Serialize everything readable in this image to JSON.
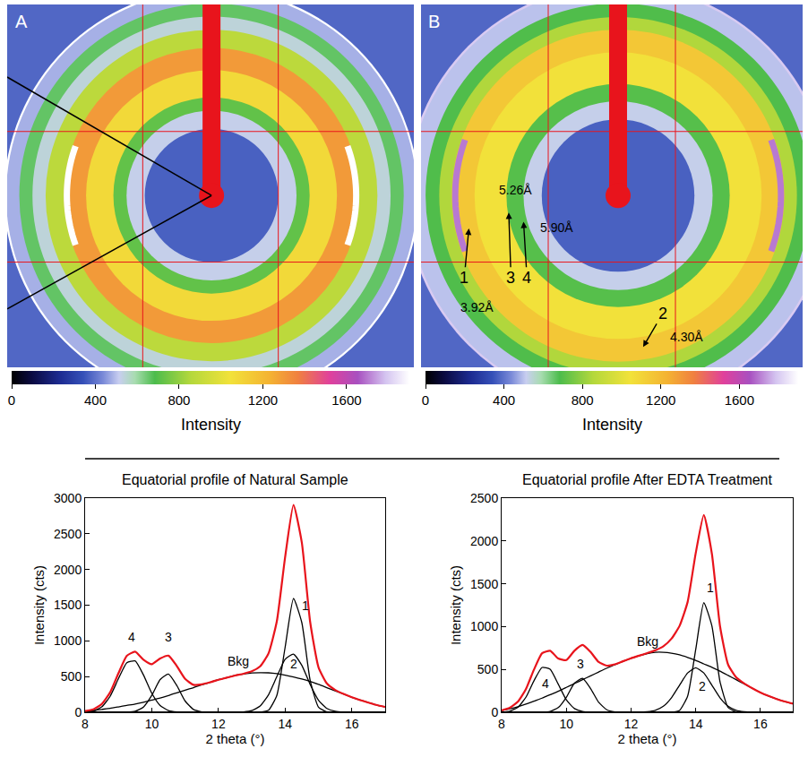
{
  "chart_data": [
    {
      "type": "image",
      "label": "A",
      "xlim": [
        -20.2,
        20
      ],
      "ylim": [
        -17,
        18.9
      ],
      "tick_labels": false,
      "background": 380,
      "bands": [
        {
          "two_theta": 20.5,
          "intensity": 1900
        },
        {
          "two_theta": 20.3,
          "intensity": 480
        },
        {
          "two_theta": 19.0,
          "intensity": 660
        },
        {
          "two_theta": 17.7,
          "intensity": 540
        },
        {
          "two_theta": 16.4,
          "intensity": 880
        },
        {
          "two_theta": 14.6,
          "intensity": 1300
        },
        {
          "two_theta": 12.4,
          "intensity": 1080
        },
        {
          "two_theta": 9.7,
          "intensity": 720
        },
        {
          "two_theta": 8.4,
          "intensity": 520
        },
        {
          "two_theta": 6.6,
          "intensity": 370
        }
      ],
      "arcs": [
        {
          "two_theta": 14.3,
          "intensity": 1900
        }
      ],
      "colorbar": {
        "title": "Intensity",
        "range": [
          0,
          1900
        ],
        "ticks": [
          0,
          400,
          800,
          1200,
          1600
        ]
      }
    },
    {
      "type": "image",
      "label": "B",
      "xlim": [
        -17.3,
        16.2
      ],
      "ylim": [
        -15.1,
        16.8
      ],
      "tick_labels": false,
      "background": 380,
      "bands": [
        {
          "two_theta": 18.6,
          "intensity": 1800
        },
        {
          "two_theta": 18.4,
          "intensity": 500
        },
        {
          "two_theta": 16.9,
          "intensity": 690
        },
        {
          "two_theta": 15.7,
          "intensity": 850
        },
        {
          "two_theta": 14.6,
          "intensity": 1150
        },
        {
          "two_theta": 12.6,
          "intensity": 1050
        },
        {
          "two_theta": 9.8,
          "intensity": 700
        },
        {
          "two_theta": 8.3,
          "intensity": 520
        },
        {
          "two_theta": 6.7,
          "intensity": 370
        }
      ],
      "arcs": [
        {
          "two_theta": 14.3,
          "intensity": 1700
        }
      ],
      "annotations": [
        {
          "text": "1",
          "x": -13.5,
          "y": -7.2,
          "arrow_to": [
            -13.1,
            -2.9
          ]
        },
        {
          "text": "3.92Å",
          "x": -12.4,
          "y": -9.8
        },
        {
          "text": "3",
          "x": -9.4,
          "y": -7.2,
          "arrow_to": [
            -9.6,
            -1.5
          ]
        },
        {
          "text": "5.26Å",
          "x": -9.0,
          "y": 0.5
        },
        {
          "text": "4",
          "x": -8.0,
          "y": -7.2,
          "arrow_to": [
            -8.3,
            -2.3
          ]
        },
        {
          "text": "5.90Å",
          "x": -5.4,
          "y": -2.8
        },
        {
          "text": "2",
          "x": 3.9,
          "y": -10.4,
          "arrow_to": [
            2.2,
            -13.3
          ]
        },
        {
          "text": "4.30Å",
          "x": 6.0,
          "y": -12.4
        }
      ],
      "colorbar": {
        "title": "Intensity",
        "range": [
          0,
          1900
        ],
        "ticks": [
          0,
          400,
          800,
          1200,
          1600
        ]
      }
    },
    {
      "type": "line",
      "title": "Equatorial profile of Natural Sample",
      "x_label": "2 theta (°)",
      "y_label": "Intensity (cts)",
      "xlim": [
        8,
        17
      ],
      "xticks": [
        8,
        10,
        12,
        14,
        16
      ],
      "ylim": [
        0,
        3000
      ],
      "yticks": [
        0,
        500,
        1000,
        1500,
        2000,
        2500,
        3000
      ],
      "grid": false,
      "x": [
        8,
        8.25,
        8.5,
        8.75,
        9,
        9.25,
        9.5,
        9.75,
        10,
        10.25,
        10.5,
        10.75,
        11,
        11.25,
        11.5,
        11.75,
        12,
        12.25,
        12.5,
        12.75,
        13,
        13.25,
        13.5,
        13.75,
        14,
        14.25,
        14.5,
        14.75,
        15,
        15.25,
        15.5,
        15.75,
        16,
        16.25,
        16.5,
        16.75,
        17
      ],
      "series": [
        {
          "name": "4",
          "color": "#000000",
          "label_at": [
            9.4,
            1050
          ],
          "values": [
            3,
            17,
            74,
            223,
            470,
            694,
            719,
            523,
            267,
            95,
            24,
            4,
            0,
            0,
            0,
            0,
            0,
            0,
            0,
            0,
            0,
            0,
            0,
            0,
            0,
            0,
            0,
            0,
            0,
            0,
            0,
            0,
            0,
            0,
            0,
            0,
            0
          ]
        },
        {
          "name": "3",
          "color": "#000000",
          "label_at": [
            10.5,
            1050
          ],
          "values": [
            0,
            0,
            0,
            0,
            0,
            2,
            14,
            73,
            236,
            458,
            534,
            374,
            157,
            39,
            6,
            0,
            0,
            0,
            0,
            0,
            0,
            0,
            0,
            0,
            0,
            0,
            0,
            0,
            0,
            0,
            0,
            0,
            0,
            0,
            0,
            0,
            0
          ]
        },
        {
          "name": "1",
          "color": "#000000",
          "label_at": [
            14.6,
            1500
          ],
          "values": [
            0,
            0,
            0,
            0,
            0,
            0,
            0,
            0,
            0,
            0,
            0,
            0,
            0,
            0,
            0,
            0,
            0,
            0,
            0,
            0,
            0,
            0,
            27,
            235,
            913,
            1594,
            1255,
            446,
            71,
            5,
            0,
            0,
            0,
            0,
            0,
            0,
            0
          ]
        },
        {
          "name": "2",
          "color": "#000000",
          "label_at": [
            14.25,
            680
          ],
          "values": [
            0,
            0,
            0,
            0,
            0,
            0,
            0,
            0,
            0,
            0,
            0,
            0,
            0,
            0,
            0,
            0,
            0,
            0,
            0,
            5,
            23,
            88,
            244,
            498,
            743,
            815,
            657,
            389,
            169,
            54,
            13,
            2,
            0,
            0,
            0,
            0,
            0
          ]
        },
        {
          "name": "Bkg",
          "color": "#000000",
          "label_at": [
            12.6,
            720
          ],
          "values": [
            15,
            25,
            40,
            55,
            75,
            95,
            115,
            140,
            170,
            200,
            235,
            270,
            310,
            345,
            385,
            420,
            455,
            485,
            515,
            535,
            550,
            555,
            552,
            540,
            520,
            495,
            465,
            430,
            390,
            345,
            300,
            255,
            210,
            170,
            135,
            100,
            75
          ]
        },
        {
          "color": "#e8141c",
          "values": [
            18,
            42,
            114,
            278,
            545,
            791,
            848,
            736,
            673,
            753,
            793,
            648,
            467,
            384,
            391,
            420,
            455,
            485,
            515,
            540,
            573,
            643,
            823,
            1273,
            2176,
            2904,
            2377,
            1265,
            630,
            404,
            313,
            257,
            210,
            170,
            135,
            100,
            75
          ]
        }
      ]
    },
    {
      "type": "line",
      "title": "Equatorial profile After EDTA Treatment",
      "x_label": "2 theta (°)",
      "y_label": "Intensity (cts)",
      "xlim": [
        8,
        17
      ],
      "xticks": [
        8,
        10,
        12,
        14,
        16
      ],
      "ylim": [
        0,
        2500
      ],
      "yticks": [
        0,
        500,
        1000,
        1500,
        2000,
        2500
      ],
      "grid": false,
      "x": [
        8,
        8.25,
        8.5,
        8.75,
        9,
        9.25,
        9.5,
        9.75,
        10,
        10.25,
        10.5,
        10.75,
        11,
        11.25,
        11.5,
        11.75,
        12,
        12.25,
        12.5,
        12.75,
        13,
        13.25,
        13.5,
        13.75,
        14,
        14.25,
        14.5,
        14.75,
        15,
        15.25,
        15.5,
        15.75,
        16,
        16.25,
        16.5,
        16.75,
        17
      ],
      "series": [
        {
          "name": "4",
          "color": "#000000",
          "label_at": [
            9.35,
            340
          ],
          "values": [
            2,
            12,
            57,
            175,
            368,
            523,
            503,
            328,
            144,
            43,
            9,
            1,
            0,
            0,
            0,
            0,
            0,
            0,
            0,
            0,
            0,
            0,
            0,
            0,
            0,
            0,
            0,
            0,
            0,
            0,
            0,
            0,
            0,
            0,
            0,
            0,
            0
          ]
        },
        {
          "name": "3",
          "color": "#000000",
          "label_at": [
            10.45,
            560
          ],
          "values": [
            0,
            0,
            0,
            0,
            0,
            1,
            10,
            54,
            175,
            340,
            396,
            277,
            116,
            29,
            4,
            0,
            0,
            0,
            0,
            0,
            0,
            0,
            0,
            0,
            0,
            0,
            0,
            0,
            0,
            0,
            0,
            0,
            0,
            0,
            0,
            0,
            0
          ]
        },
        {
          "name": "1",
          "color": "#000000",
          "label_at": [
            14.45,
            1450
          ],
          "values": [
            0,
            0,
            0,
            0,
            0,
            0,
            0,
            0,
            0,
            0,
            0,
            0,
            0,
            0,
            0,
            0,
            0,
            0,
            0,
            0,
            0,
            0,
            22,
            189,
            733,
            1279,
            1008,
            358,
            57,
            4,
            0,
            0,
            0,
            0,
            0,
            0,
            0
          ]
        },
        {
          "name": "2",
          "color": "#000000",
          "label_at": [
            14.2,
            300
          ],
          "values": [
            0,
            0,
            0,
            0,
            0,
            0,
            0,
            0,
            0,
            0,
            0,
            0,
            0,
            0,
            0,
            0,
            0,
            0,
            6,
            23,
            70,
            169,
            316,
            459,
            520,
            459,
            316,
            169,
            70,
            23,
            6,
            0,
            0,
            0,
            0,
            0,
            0
          ]
        },
        {
          "name": "Bkg",
          "color": "#000000",
          "label_at": [
            12.5,
            830
          ],
          "values": [
            20,
            40,
            65,
            95,
            130,
            165,
            205,
            245,
            290,
            335,
            380,
            425,
            470,
            515,
            555,
            595,
            630,
            660,
            685,
            700,
            700,
            690,
            670,
            640,
            605,
            565,
            525,
            480,
            430,
            380,
            330,
            280,
            230,
            190,
            155,
            125,
            100
          ]
        },
        {
          "color": "#e8141c",
          "values": [
            22,
            52,
            122,
            270,
            498,
            689,
            718,
            627,
            609,
            718,
            785,
            703,
            586,
            544,
            559,
            595,
            630,
            660,
            691,
            723,
            770,
            859,
            1008,
            1288,
            1858,
            2303,
            1849,
            1007,
            557,
            407,
            336,
            280,
            230,
            190,
            155,
            125,
            100
          ]
        }
      ]
    }
  ]
}
